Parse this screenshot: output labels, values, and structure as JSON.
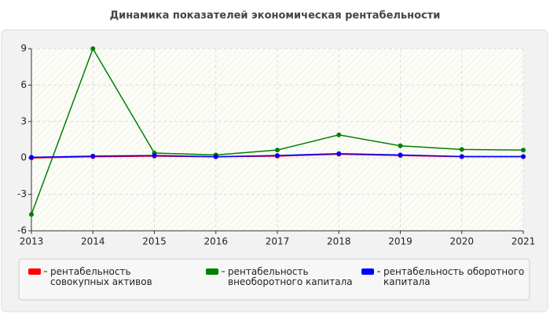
{
  "chart_data": {
    "type": "line",
    "title": "Динамика показателей экономическая рентабельности",
    "categories": [
      "2013",
      "2014",
      "2015",
      "2016",
      "2017",
      "2018",
      "2019",
      "2020",
      "2021"
    ],
    "series": [
      {
        "name": "рентабельность совокупных активов",
        "color": "#ff0000",
        "values": [
          0.0,
          0.1,
          0.15,
          0.1,
          0.15,
          0.3,
          0.2,
          0.1,
          0.1
        ]
      },
      {
        "name": "рентабельность внеоборотного капитала",
        "color": "#008000",
        "values": [
          -4.65,
          9,
          0.4,
          0.25,
          0.65,
          1.9,
          1.0,
          0.7,
          0.65
        ]
      },
      {
        "name": "рентабельность оборотного капитала",
        "color": "#0000ff",
        "values": [
          0.05,
          0.15,
          0.2,
          0.1,
          0.2,
          0.35,
          0.25,
          0.12,
          0.12
        ]
      }
    ],
    "ylim": [
      -6,
      9
    ],
    "yticks": [
      -6,
      -3,
      0,
      3,
      6,
      9
    ],
    "grid": true
  }
}
